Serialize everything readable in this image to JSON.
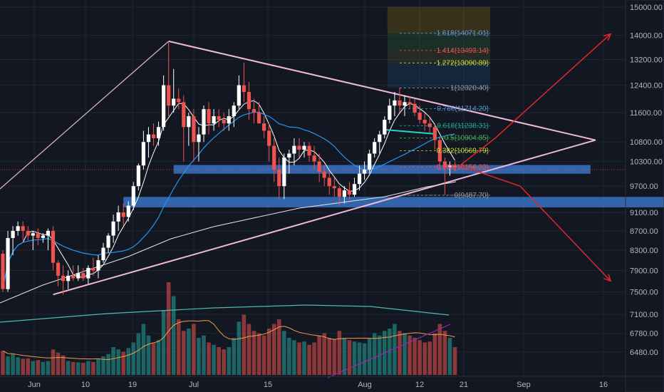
{
  "colors": {
    "background": "#131722",
    "grid": "#1f2431",
    "up": "#ffffff",
    "down": "#ef5350",
    "vol_up": "#26a69a",
    "vol_down": "#ef5350",
    "triangle": "#f2b8d8",
    "support_zone": "#3d7fd9",
    "projection": "#e0282a",
    "ma_short": "#ffffff",
    "ma_mid": "#2196f3",
    "ma_long": "#e6e6e6",
    "vol_ma": "#f39c4a",
    "vol_ma_long": "#4fb8b0",
    "vol_purple": "#9c27b0"
  },
  "chart_data": {
    "type": "candlestick",
    "instrument_hint": "BTCUSD daily",
    "y_axis": {
      "scale": "log",
      "ticks": [
        "15000.00",
        "14000.00",
        "13200.00",
        "12400.00",
        "11600.00",
        "10800.00",
        "10300.00",
        "9700.00",
        "9100.00",
        "8700.00",
        "8300.00",
        "7900.00",
        "7500.00",
        "7100.00",
        "6780.00",
        "6480.00"
      ],
      "range": [
        6300,
        15100
      ],
      "position": "right"
    },
    "x_axis": {
      "labels": [
        "Jun",
        "10",
        "19",
        "Jul",
        "15",
        "Aug",
        "12",
        "21",
        "Sep",
        "16"
      ]
    },
    "candles": [
      {
        "o": 8230,
        "h": 8300,
        "l": 7500,
        "c": 7550
      },
      {
        "o": 7550,
        "h": 8700,
        "l": 7500,
        "c": 8550
      },
      {
        "o": 8550,
        "h": 8800,
        "l": 8200,
        "c": 8700
      },
      {
        "o": 8700,
        "h": 8900,
        "l": 8600,
        "c": 8800
      },
      {
        "o": 8800,
        "h": 8900,
        "l": 8500,
        "c": 8700
      },
      {
        "o": 8700,
        "h": 8800,
        "l": 8500,
        "c": 8600
      },
      {
        "o": 8600,
        "h": 8700,
        "l": 8300,
        "c": 8650
      },
      {
        "o": 8650,
        "h": 8750,
        "l": 8400,
        "c": 8550
      },
      {
        "o": 8550,
        "h": 8650,
        "l": 8450,
        "c": 8600
      },
      {
        "o": 8600,
        "h": 8750,
        "l": 8300,
        "c": 8700
      },
      {
        "o": 8700,
        "h": 8800,
        "l": 7900,
        "c": 8050
      },
      {
        "o": 8050,
        "h": 8100,
        "l": 7600,
        "c": 7800
      },
      {
        "o": 7800,
        "h": 8000,
        "l": 7450,
        "c": 7700
      },
      {
        "o": 7700,
        "h": 7900,
        "l": 7550,
        "c": 7800
      },
      {
        "o": 7800,
        "h": 8000,
        "l": 7700,
        "c": 7750
      },
      {
        "o": 7750,
        "h": 8000,
        "l": 7700,
        "c": 7850
      },
      {
        "o": 7850,
        "h": 7950,
        "l": 7700,
        "c": 7750
      },
      {
        "o": 7750,
        "h": 8000,
        "l": 7650,
        "c": 7950
      },
      {
        "o": 7950,
        "h": 8150,
        "l": 7800,
        "c": 7900
      },
      {
        "o": 7900,
        "h": 8200,
        "l": 7750,
        "c": 8100
      },
      {
        "o": 8100,
        "h": 8450,
        "l": 8050,
        "c": 8350
      },
      {
        "o": 8350,
        "h": 8650,
        "l": 8250,
        "c": 8600
      },
      {
        "o": 8600,
        "h": 9050,
        "l": 8450,
        "c": 8900
      },
      {
        "o": 8900,
        "h": 9250,
        "l": 8700,
        "c": 9100
      },
      {
        "o": 9100,
        "h": 9300,
        "l": 8800,
        "c": 9000
      },
      {
        "o": 9000,
        "h": 9350,
        "l": 8900,
        "c": 9250
      },
      {
        "o": 9250,
        "h": 9800,
        "l": 9150,
        "c": 9700
      },
      {
        "o": 9700,
        "h": 10250,
        "l": 9600,
        "c": 10200
      },
      {
        "o": 10200,
        "h": 11100,
        "l": 10100,
        "c": 10800
      },
      {
        "o": 10800,
        "h": 11200,
        "l": 10400,
        "c": 11000
      },
      {
        "o": 11000,
        "h": 11300,
        "l": 10700,
        "c": 10900
      },
      {
        "o": 10900,
        "h": 11350,
        "l": 10700,
        "c": 11200
      },
      {
        "o": 11200,
        "h": 12700,
        "l": 11100,
        "c": 12400
      },
      {
        "o": 12400,
        "h": 13800,
        "l": 11500,
        "c": 11800
      },
      {
        "o": 11800,
        "h": 12900,
        "l": 11600,
        "c": 12000
      },
      {
        "o": 12000,
        "h": 12300,
        "l": 11700,
        "c": 11900
      },
      {
        "o": 11900,
        "h": 12100,
        "l": 10300,
        "c": 11200
      },
      {
        "o": 11200,
        "h": 11600,
        "l": 10700,
        "c": 11500
      },
      {
        "o": 11500,
        "h": 11700,
        "l": 10300,
        "c": 10800
      },
      {
        "o": 10800,
        "h": 11200,
        "l": 10300,
        "c": 11000
      },
      {
        "o": 11000,
        "h": 11800,
        "l": 10800,
        "c": 11700
      },
      {
        "o": 11700,
        "h": 11900,
        "l": 11000,
        "c": 11300
      },
      {
        "o": 11300,
        "h": 11700,
        "l": 11100,
        "c": 11500
      },
      {
        "o": 11500,
        "h": 11700,
        "l": 11200,
        "c": 11400
      },
      {
        "o": 11400,
        "h": 11600,
        "l": 11100,
        "c": 11300
      },
      {
        "o": 11300,
        "h": 11700,
        "l": 11100,
        "c": 11500
      },
      {
        "o": 11500,
        "h": 11900,
        "l": 11200,
        "c": 11800
      },
      {
        "o": 11800,
        "h": 12700,
        "l": 11700,
        "c": 12400
      },
      {
        "o": 12400,
        "h": 13100,
        "l": 11900,
        "c": 12200
      },
      {
        "o": 12200,
        "h": 12500,
        "l": 11400,
        "c": 11700
      },
      {
        "o": 11700,
        "h": 12000,
        "l": 11300,
        "c": 11600
      },
      {
        "o": 11600,
        "h": 11900,
        "l": 11300,
        "c": 11300
      },
      {
        "o": 11300,
        "h": 11500,
        "l": 10900,
        "c": 11100
      },
      {
        "o": 11100,
        "h": 11300,
        "l": 10300,
        "c": 10700
      },
      {
        "o": 10700,
        "h": 10900,
        "l": 9800,
        "c": 10100
      },
      {
        "o": 10100,
        "h": 10400,
        "l": 9400,
        "c": 9700
      },
      {
        "o": 9700,
        "h": 10500,
        "l": 9400,
        "c": 10400
      },
      {
        "o": 10400,
        "h": 10600,
        "l": 10000,
        "c": 10500
      },
      {
        "o": 10500,
        "h": 10900,
        "l": 10200,
        "c": 10700
      },
      {
        "o": 10700,
        "h": 10900,
        "l": 10400,
        "c": 10600
      },
      {
        "o": 10600,
        "h": 10800,
        "l": 10400,
        "c": 10700
      },
      {
        "o": 10700,
        "h": 10800,
        "l": 10300,
        "c": 10450
      },
      {
        "o": 10450,
        "h": 10700,
        "l": 10100,
        "c": 10300
      },
      {
        "o": 10300,
        "h": 10500,
        "l": 9800,
        "c": 10050
      },
      {
        "o": 10050,
        "h": 10200,
        "l": 9700,
        "c": 9900
      },
      {
        "o": 9900,
        "h": 10050,
        "l": 9500,
        "c": 9700
      },
      {
        "o": 9700,
        "h": 9900,
        "l": 9450,
        "c": 9650
      },
      {
        "o": 9650,
        "h": 9700,
        "l": 9250,
        "c": 9450
      },
      {
        "o": 9450,
        "h": 9700,
        "l": 9300,
        "c": 9600
      },
      {
        "o": 9600,
        "h": 9800,
        "l": 9400,
        "c": 9500
      },
      {
        "o": 9500,
        "h": 9900,
        "l": 9450,
        "c": 9750
      },
      {
        "o": 9750,
        "h": 10200,
        "l": 9600,
        "c": 10000
      },
      {
        "o": 10000,
        "h": 10300,
        "l": 9850,
        "c": 10100
      },
      {
        "o": 10100,
        "h": 10600,
        "l": 10000,
        "c": 10500
      },
      {
        "o": 10500,
        "h": 10900,
        "l": 10400,
        "c": 10800
      },
      {
        "o": 10800,
        "h": 11100,
        "l": 10500,
        "c": 11000
      },
      {
        "o": 11000,
        "h": 11500,
        "l": 10900,
        "c": 11400
      },
      {
        "o": 11400,
        "h": 12000,
        "l": 11300,
        "c": 11800
      },
      {
        "o": 11800,
        "h": 12200,
        "l": 11500,
        "c": 11950
      },
      {
        "o": 11950,
        "h": 12320,
        "l": 11600,
        "c": 11800
      },
      {
        "o": 11800,
        "h": 12100,
        "l": 11500,
        "c": 11900
      },
      {
        "o": 11900,
        "h": 12050,
        "l": 11700,
        "c": 11850
      },
      {
        "o": 11850,
        "h": 12000,
        "l": 11500,
        "c": 11600
      },
      {
        "o": 11600,
        "h": 11800,
        "l": 11300,
        "c": 11400
      },
      {
        "o": 11400,
        "h": 11600,
        "l": 11100,
        "c": 11300
      },
      {
        "o": 11300,
        "h": 11450,
        "l": 11050,
        "c": 11200
      },
      {
        "o": 11200,
        "h": 11300,
        "l": 10600,
        "c": 10850
      },
      {
        "o": 10850,
        "h": 10950,
        "l": 10100,
        "c": 10300
      },
      {
        "o": 10300,
        "h": 10400,
        "l": 9500,
        "c": 10150
      },
      {
        "o": 10150,
        "h": 10300,
        "l": 9950,
        "c": 10200
      },
      {
        "o": 10200,
        "h": 10300,
        "l": 10050,
        "c": 10150
      }
    ],
    "volume": [
      52,
      40,
      45,
      38,
      35,
      36,
      30,
      32,
      28,
      30,
      55,
      48,
      42,
      30,
      28,
      27,
      26,
      30,
      28,
      35,
      40,
      45,
      60,
      55,
      50,
      58,
      70,
      90,
      110,
      85,
      70,
      75,
      140,
      200,
      170,
      120,
      95,
      100,
      110,
      80,
      85,
      70,
      65,
      60,
      55,
      60,
      80,
      115,
      130,
      110,
      95,
      90,
      85,
      100,
      110,
      120,
      95,
      80,
      75,
      70,
      72,
      65,
      70,
      85,
      90,
      80,
      78,
      95,
      80,
      75,
      72,
      70,
      68,
      80,
      90,
      85,
      95,
      100,
      110,
      95,
      90,
      85,
      80,
      75,
      70,
      72,
      90,
      110,
      95,
      80,
      60
    ],
    "fib_levels": [
      {
        "ratio": "1.618",
        "value": "14071.01",
        "color": "#5b9bd5"
      },
      {
        "ratio": "1.414",
        "value": "13493.14",
        "color": "#ef5350"
      },
      {
        "ratio": "1.272",
        "value": "13090.89",
        "color": "#cddc39"
      },
      {
        "ratio": "1",
        "value": "12320.40",
        "color": "#9e9e9e"
      },
      {
        "ratio": "0.786",
        "value": "11714.20",
        "color": "#5b9bd5"
      },
      {
        "ratio": "0.618",
        "value": "11238.31",
        "color": "#26a69a"
      },
      {
        "ratio": "0.5",
        "value": "10904.85",
        "color": "#4caf50"
      },
      {
        "ratio": "0.382",
        "value": "10569.79",
        "color": "#cddc39"
      },
      {
        "ratio": "0.236",
        "value": "10156.22",
        "color": "#ef5350"
      },
      {
        "ratio": "0",
        "value": "9487.70",
        "color": "#9e9e9e"
      }
    ],
    "triangle": {
      "apex_top": {
        "idx": 33,
        "price": 13800
      },
      "apex_low": {
        "idx": 10,
        "price": 7450
      },
      "apex_right": {
        "idx": 118,
        "price": 10850
      }
    },
    "support_zones": [
      {
        "from_idx": 34,
        "to_idx": 117,
        "low": 10050,
        "high": 10160
      },
      {
        "from_idx": 24,
        "to_idx": 132,
        "low": 9260,
        "high": 9400
      }
    ],
    "projection_paths": [
      [
        {
          "idx": 91,
          "price": 10200
        },
        {
          "idx": 98,
          "price": 10900
        },
        {
          "idx": 121,
          "price": 14050
        }
      ],
      [
        {
          "idx": 91,
          "price": 10200
        },
        {
          "idx": 103,
          "price": 9700
        },
        {
          "idx": 121,
          "price": 7700
        }
      ]
    ]
  }
}
